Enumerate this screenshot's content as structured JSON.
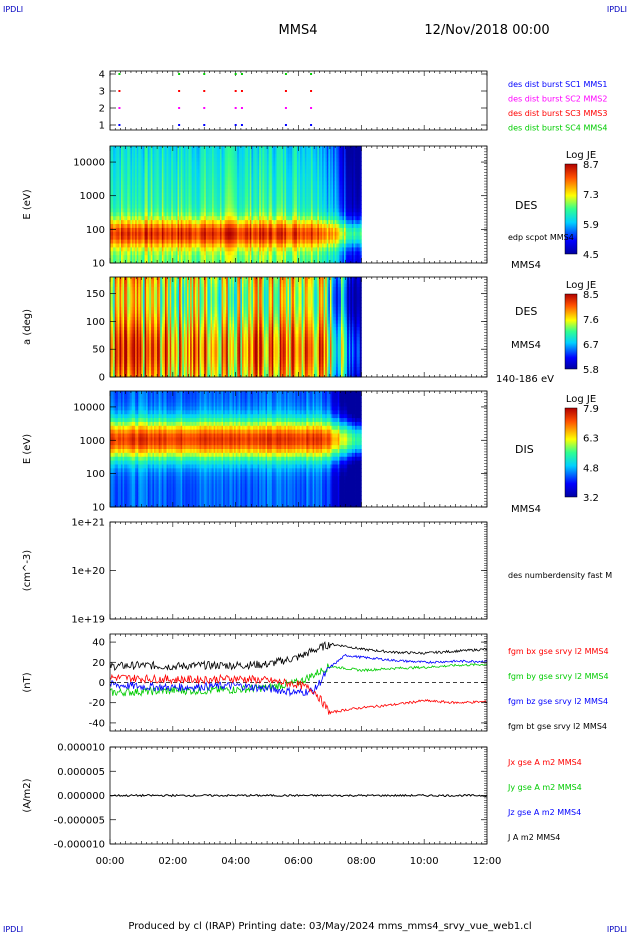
{
  "header": {
    "corner_left": "IPDLI",
    "corner_right": "IPDLI",
    "spacecraft": "MMS4",
    "datetime": "12/Nov/2018 00:00"
  },
  "footer": {
    "text": "Produced by cl (IRAP)   Printing date: 03/May/2024   mms_mms4_srvy_vue_web1.cl",
    "corner_left": "IPDLI",
    "corner_right": "IPDLI"
  },
  "colors": {
    "blue": "#0000ff",
    "magenta": "#ff00ff",
    "red": "#ff0000",
    "green": "#00cc00",
    "black": "#000000"
  },
  "chart_data": [
    {
      "id": "burst",
      "type": "scatter",
      "yticks": [
        "1",
        "2",
        "3",
        "4"
      ],
      "legend": [
        {
          "label": "des dist burst SC1 MMS1",
          "color": "#0000ff"
        },
        {
          "label": "des dist burst SC2 MMS2",
          "color": "#ff00ff"
        },
        {
          "label": "des dist burst SC3 MMS3",
          "color": "#ff0000"
        },
        {
          "label": "des dist burst SC4 MMS4",
          "color": "#00cc00"
        }
      ],
      "burst_times_h": [
        0.3,
        2.2,
        3.0,
        4.0,
        4.2,
        5.6,
        6.4
      ]
    },
    {
      "id": "des_energy",
      "type": "heatmap",
      "ylabel": "E (eV)",
      "yscale": "log",
      "ylim": [
        10,
        30000
      ],
      "yticks": [
        "10",
        "100",
        "1000",
        "10000"
      ],
      "label_right": "DES",
      "label_right2": "edp scpot MMS4",
      "label_right3": "MMS4",
      "colorbar": {
        "title": "Log JE",
        "ticks": [
          "8.7",
          "7.3",
          "5.9",
          "4.5"
        ],
        "range": [
          4.5,
          8.7
        ]
      },
      "data_end_h": 8.0
    },
    {
      "id": "des_pitch",
      "type": "heatmap",
      "ylabel": "a (deg)",
      "ylim": [
        0,
        180
      ],
      "yticks": [
        "0",
        "50",
        "100",
        "150"
      ],
      "label_right": "DES",
      "label_right2": "MMS4",
      "label_right3": "140-186 eV",
      "colorbar": {
        "title": "Log JE",
        "ticks": [
          "8.5",
          "7.6",
          "6.7",
          "5.8"
        ],
        "range": [
          5.8,
          8.5
        ]
      },
      "data_end_h": 8.0
    },
    {
      "id": "dis_energy",
      "type": "heatmap",
      "ylabel": "E (eV)",
      "yscale": "log",
      "ylim": [
        10,
        30000
      ],
      "yticks": [
        "10",
        "100",
        "1000",
        "10000"
      ],
      "label_right": "DIS",
      "label_right3": "MMS4",
      "colorbar": {
        "title": "Log JE",
        "ticks": [
          "7.9",
          "6.3",
          "4.8",
          "3.2"
        ],
        "range": [
          3.2,
          7.9
        ]
      },
      "data_end_h": 8.0
    },
    {
      "id": "density",
      "type": "line",
      "ylabel": "(cm^-3)",
      "yscale": "log",
      "ylim": [
        1e+19,
        1e+21
      ],
      "yticks": [
        "1e+19",
        "1e+20",
        "1e+21"
      ],
      "legend": [
        {
          "label": "des numberdensity fast M",
          "color": "#000000"
        }
      ]
    },
    {
      "id": "fgm",
      "type": "line",
      "ylabel": "(nT)",
      "ylim": [
        -48,
        48
      ],
      "yticks": [
        "-40",
        "-20",
        "0",
        "20",
        "40"
      ],
      "legend": [
        {
          "label": "fgm bx gse srvy l2 MMS4",
          "color": "#ff0000"
        },
        {
          "label": "fgm by gse srvy l2 MMS4",
          "color": "#00cc00"
        },
        {
          "label": "fgm bz gse srvy l2 MMS4",
          "color": "#0000ff"
        },
        {
          "label": "fgm bt gse srvy l2 MMS4",
          "color": "#000000"
        }
      ],
      "series": [
        {
          "name": "fgm bt gse srvy l2 MMS4",
          "color": "#000000",
          "x": [
            0,
            1,
            2,
            3,
            4,
            5,
            6,
            6.5,
            7,
            7.5,
            8,
            9,
            10,
            11,
            12
          ],
          "y": [
            16,
            17,
            16,
            17,
            17,
            18,
            25,
            32,
            38,
            36,
            33,
            30,
            29,
            31,
            33
          ]
        },
        {
          "name": "fgm by gse srvy l2 MMS4",
          "color": "#00cc00",
          "x": [
            0,
            1,
            2,
            3,
            4,
            5,
            6,
            6.5,
            7,
            7.5,
            8,
            9,
            10,
            11,
            12
          ],
          "y": [
            -10,
            -9,
            -8,
            -8,
            -7,
            -5,
            0,
            8,
            16,
            14,
            12,
            14,
            15,
            17,
            18
          ]
        },
        {
          "name": "fgm bz gse srvy l2 MMS4",
          "color": "#0000ff",
          "x": [
            0,
            1,
            2,
            3,
            4,
            5,
            6,
            6.5,
            7,
            7.5,
            8,
            9,
            10,
            11,
            12
          ],
          "y": [
            -2,
            -4,
            -5,
            -4,
            -3,
            -6,
            -10,
            -8,
            15,
            27,
            25,
            22,
            20,
            21,
            21
          ]
        },
        {
          "name": "fgm bx gse srvy l2 MMS4",
          "color": "#ff0000",
          "x": [
            0,
            1,
            2,
            3,
            4,
            5,
            6,
            6.5,
            7,
            7.5,
            8,
            9,
            10,
            11,
            12
          ],
          "y": [
            5,
            4,
            3,
            3,
            4,
            2,
            -2,
            -8,
            -30,
            -27,
            -25,
            -22,
            -18,
            -20,
            -19
          ]
        }
      ]
    },
    {
      "id": "current",
      "type": "line",
      "ylabel": "(A/m2)",
      "ylim": [
        -1e-05,
        1e-05
      ],
      "yticks": [
        "-0.000010",
        "-0.000005",
        "0.000000",
        "0.000005",
        "0.000010"
      ],
      "legend": [
        {
          "label": "Jx gse A m2 MMS4",
          "color": "#ff0000"
        },
        {
          "label": "Jy gse A m2 MMS4",
          "color": "#00cc00"
        },
        {
          "label": "Jz gse A m2 MMS4",
          "color": "#0000ff"
        },
        {
          "label": "J A m2 MMS4",
          "color": "#000000"
        }
      ]
    }
  ],
  "xaxis": {
    "range_h": [
      0,
      12
    ],
    "ticks": [
      "00:00",
      "02:00",
      "04:00",
      "06:00",
      "08:00",
      "10:00",
      "12:00"
    ]
  }
}
